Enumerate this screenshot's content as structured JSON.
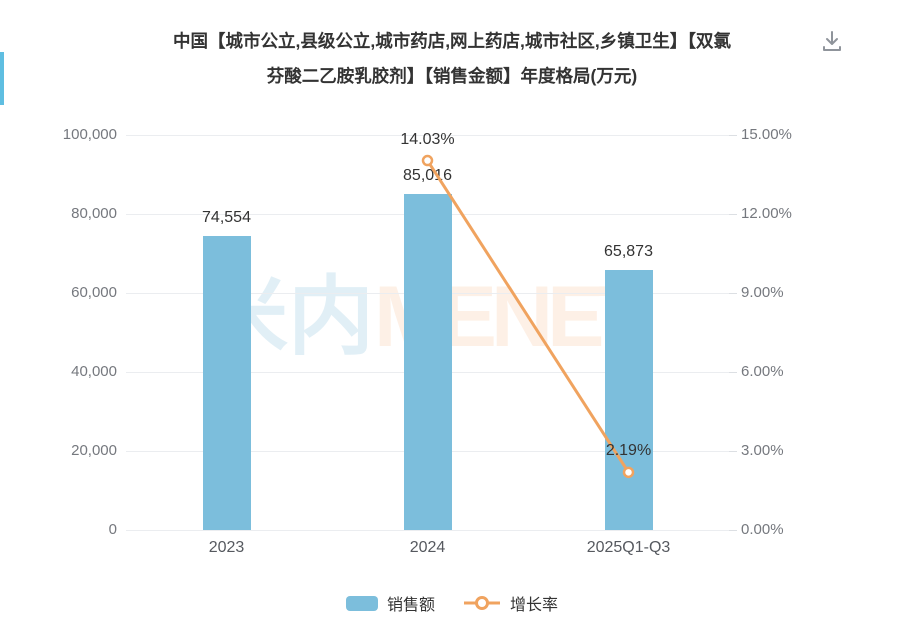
{
  "header": {
    "title_line1": "中国【城市公立,县级公立,城市药店,网上药店,城市社区,乡镇卫生】【双氯",
    "title_line2": "芬酸二乙胺乳胶剂】【销售金额】年度格局(万元)",
    "download_icon": "download-icon"
  },
  "left_stripe_color": "#5FBEE1",
  "chart_data": {
    "type": "bar",
    "title": "中国【城市公立,县级公立,城市药店,网上药店,城市社区,乡镇卫生】【双氯芬酸二乙胺乳胶剂】【销售金额】年度格局(万元)",
    "categories": [
      "2023",
      "2024",
      "2025Q1-Q3"
    ],
    "series": [
      {
        "name": "销售额",
        "type": "bar",
        "axis": "left",
        "color": "#7CBEDC",
        "values": [
          74554,
          85016,
          65873
        ],
        "labels": [
          "74,554",
          "85,016",
          "65,873"
        ]
      },
      {
        "name": "增长率",
        "type": "line",
        "axis": "right",
        "color": "#F0A35F",
        "values": [
          null,
          14.03,
          2.19
        ],
        "labels": [
          null,
          "14.03%",
          "2.19%"
        ]
      }
    ],
    "left_axis": {
      "min": 0,
      "max": 100000,
      "ticks": [
        "0",
        "20,000",
        "40,000",
        "60,000",
        "80,000",
        "100,000"
      ]
    },
    "right_axis": {
      "min": 0,
      "max": 15,
      "ticks": [
        "0.00%",
        "3.00%",
        "6.00%",
        "9.00%",
        "12.00%",
        "15.00%"
      ]
    },
    "grid": true,
    "legend_position": "bottom",
    "legend": [
      {
        "label": "销售额",
        "marker": "bar"
      },
      {
        "label": "增长率",
        "marker": "line"
      }
    ],
    "watermark": {
      "part1": "米内",
      "part2": "MENET"
    }
  }
}
